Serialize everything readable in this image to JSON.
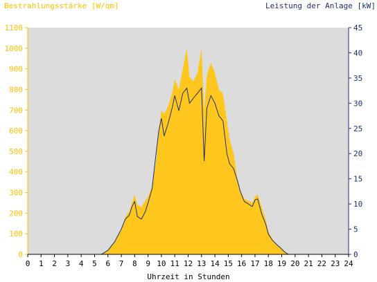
{
  "chart_data": {
    "type": "area",
    "title_left": "Bestrahlungsstärke [W/qm]",
    "title_right": "Leistung der Anlage [kW]",
    "xlabel": "Uhrzeit in Stunden",
    "xlim": [
      0,
      24
    ],
    "x_ticks": [
      "0",
      "1",
      "2",
      "3",
      "4",
      "5",
      "6",
      "7",
      "8",
      "9",
      "10",
      "11",
      "12",
      "13",
      "14",
      "15",
      "16",
      "17",
      "18",
      "19",
      "20",
      "21",
      "22",
      "23",
      "24"
    ],
    "y_left": {
      "lim": [
        0,
        1100
      ],
      "ticks": [
        "0",
        "100",
        "200",
        "300",
        "400",
        "500",
        "600",
        "700",
        "800",
        "900",
        "1000",
        "1100"
      ],
      "color": "#ffc000"
    },
    "y_right": {
      "lim": [
        0,
        45
      ],
      "ticks": [
        "0",
        "5",
        "10",
        "15",
        "20",
        "25",
        "30",
        "35",
        "40",
        "45"
      ],
      "color": "#1a2f6e"
    },
    "grid": false,
    "background": "#dcdcdc",
    "series": [
      {
        "name": "Bestrahlungsstärke",
        "axis": "left",
        "style": "area",
        "color": "#ffc61e",
        "x": [
          5.5,
          6.0,
          6.5,
          7.0,
          7.3,
          7.6,
          7.8,
          8.0,
          8.2,
          8.5,
          8.8,
          9.0,
          9.3,
          9.6,
          9.8,
          10.0,
          10.2,
          10.5,
          10.8,
          11.0,
          11.3,
          11.6,
          11.9,
          12.1,
          12.4,
          12.7,
          13.0,
          13.2,
          13.4,
          13.7,
          14.0,
          14.3,
          14.6,
          14.9,
          15.1,
          15.4,
          15.7,
          15.9,
          16.2,
          16.5,
          16.8,
          17.0,
          17.2,
          17.5,
          17.8,
          18.0,
          18.3,
          18.6,
          18.9,
          19.2,
          19.5
        ],
        "values": [
          0,
          20,
          60,
          120,
          180,
          210,
          250,
          290,
          240,
          230,
          260,
          280,
          330,
          450,
          600,
          700,
          680,
          720,
          780,
          850,
          800,
          900,
          1000,
          860,
          840,
          880,
          1000,
          700,
          870,
          930,
          880,
          800,
          780,
          650,
          560,
          490,
          360,
          310,
          270,
          260,
          250,
          280,
          290,
          230,
          170,
          110,
          75,
          50,
          35,
          15,
          0
        ]
      },
      {
        "name": "Leistung der Anlage",
        "axis": "right",
        "style": "line",
        "color": "#1a2f6e",
        "x": [
          5.5,
          6.0,
          6.5,
          7.0,
          7.3,
          7.6,
          7.8,
          8.0,
          8.2,
          8.5,
          8.8,
          9.0,
          9.3,
          9.6,
          9.8,
          10.0,
          10.2,
          10.5,
          10.8,
          11.0,
          11.3,
          11.6,
          11.9,
          12.1,
          12.4,
          12.7,
          13.0,
          13.2,
          13.4,
          13.7,
          14.0,
          14.3,
          14.6,
          14.9,
          15.1,
          15.4,
          15.7,
          15.9,
          16.2,
          16.5,
          16.8,
          17.0,
          17.2,
          17.5,
          17.8,
          18.0,
          18.3,
          18.6,
          18.9,
          19.2,
          19.5
        ],
        "values": [
          0,
          0.8,
          2.5,
          5,
          7,
          7.8,
          9.5,
          10.5,
          7.5,
          7,
          8.5,
          10.2,
          13,
          20,
          24.5,
          27,
          23.5,
          26,
          29,
          31.5,
          28.5,
          32,
          33,
          30,
          31,
          32,
          33,
          18.5,
          29,
          31.5,
          30,
          27.5,
          26.5,
          20,
          18,
          17,
          14.5,
          12.5,
          10.5,
          10,
          9.5,
          10.8,
          11,
          8,
          6,
          4,
          2.8,
          2,
          1.3,
          0.5,
          0
        ]
      }
    ]
  }
}
